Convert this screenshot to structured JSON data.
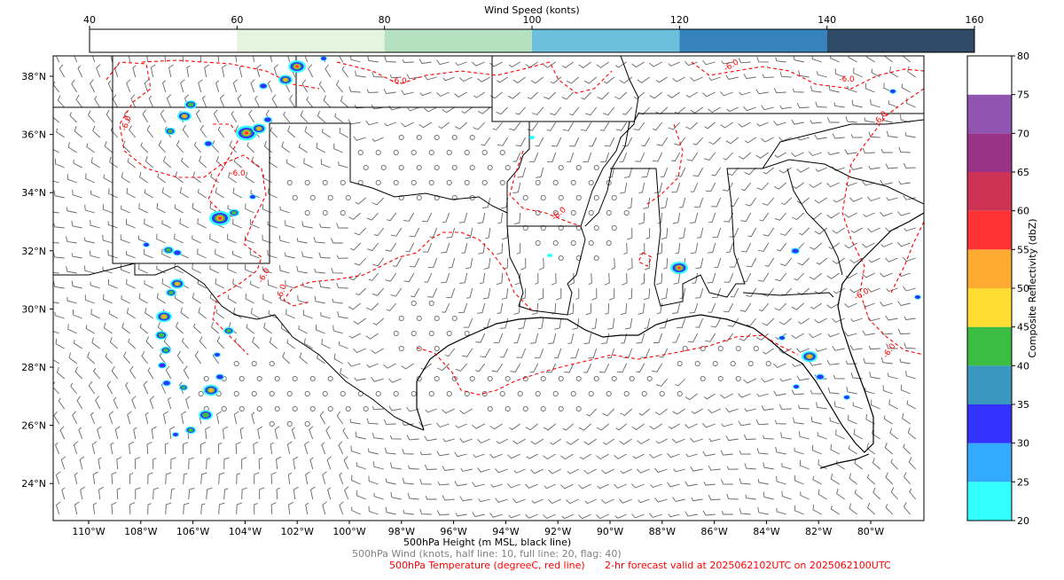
{
  "wind_colorbar": {
    "title": "Wind Speed (konts)",
    "ticks": [
      "40",
      "60",
      "80",
      "100",
      "120",
      "140",
      "160"
    ],
    "colors": [
      "#ffffff",
      "#e3f4df",
      "#b6e1c1",
      "#6cc0dc",
      "#3582bd",
      "#2e4a66"
    ]
  },
  "reflectivity_colorbar": {
    "title": "Composite Reflectivity (dbZ)",
    "ticks": [
      "20",
      "25",
      "30",
      "35",
      "40",
      "45",
      "50",
      "55",
      "60",
      "65",
      "70",
      "75",
      "80"
    ],
    "colors": [
      "#33ffff",
      "#33aaff",
      "#3333ff",
      "#3a98c0",
      "#3cbd43",
      "#ffdd33",
      "#ffaa33",
      "#ff3333",
      "#cc3355",
      "#993388",
      "#9055b0",
      "#ffffff"
    ]
  },
  "map": {
    "lon_labels": [
      "110°W",
      "108°W",
      "106°W",
      "104°W",
      "102°W",
      "100°W",
      "98°W",
      "96°W",
      "94°W",
      "92°W",
      "90°W",
      "88°W",
      "86°W",
      "84°W",
      "82°W",
      "80°W"
    ],
    "lat_labels": [
      "38°N",
      "36°N",
      "34°N",
      "32°N",
      "30°N",
      "28°N",
      "26°N",
      "24°N"
    ],
    "contour_label": "-6.0",
    "temperature_color": "#ff0000",
    "height_color": "#000000",
    "barb_color": "#666666"
  },
  "captions": {
    "height": "500hPa Height (m MSL, black line)",
    "wind": "500hPa Wind (knots, half line: 10, full line: 20, flag: 40)",
    "temperature": "500hPa Temperature (degreeC, red line)",
    "valid": "2-hr forecast valid at 2025062102UTC on 2025062100UTC"
  }
}
